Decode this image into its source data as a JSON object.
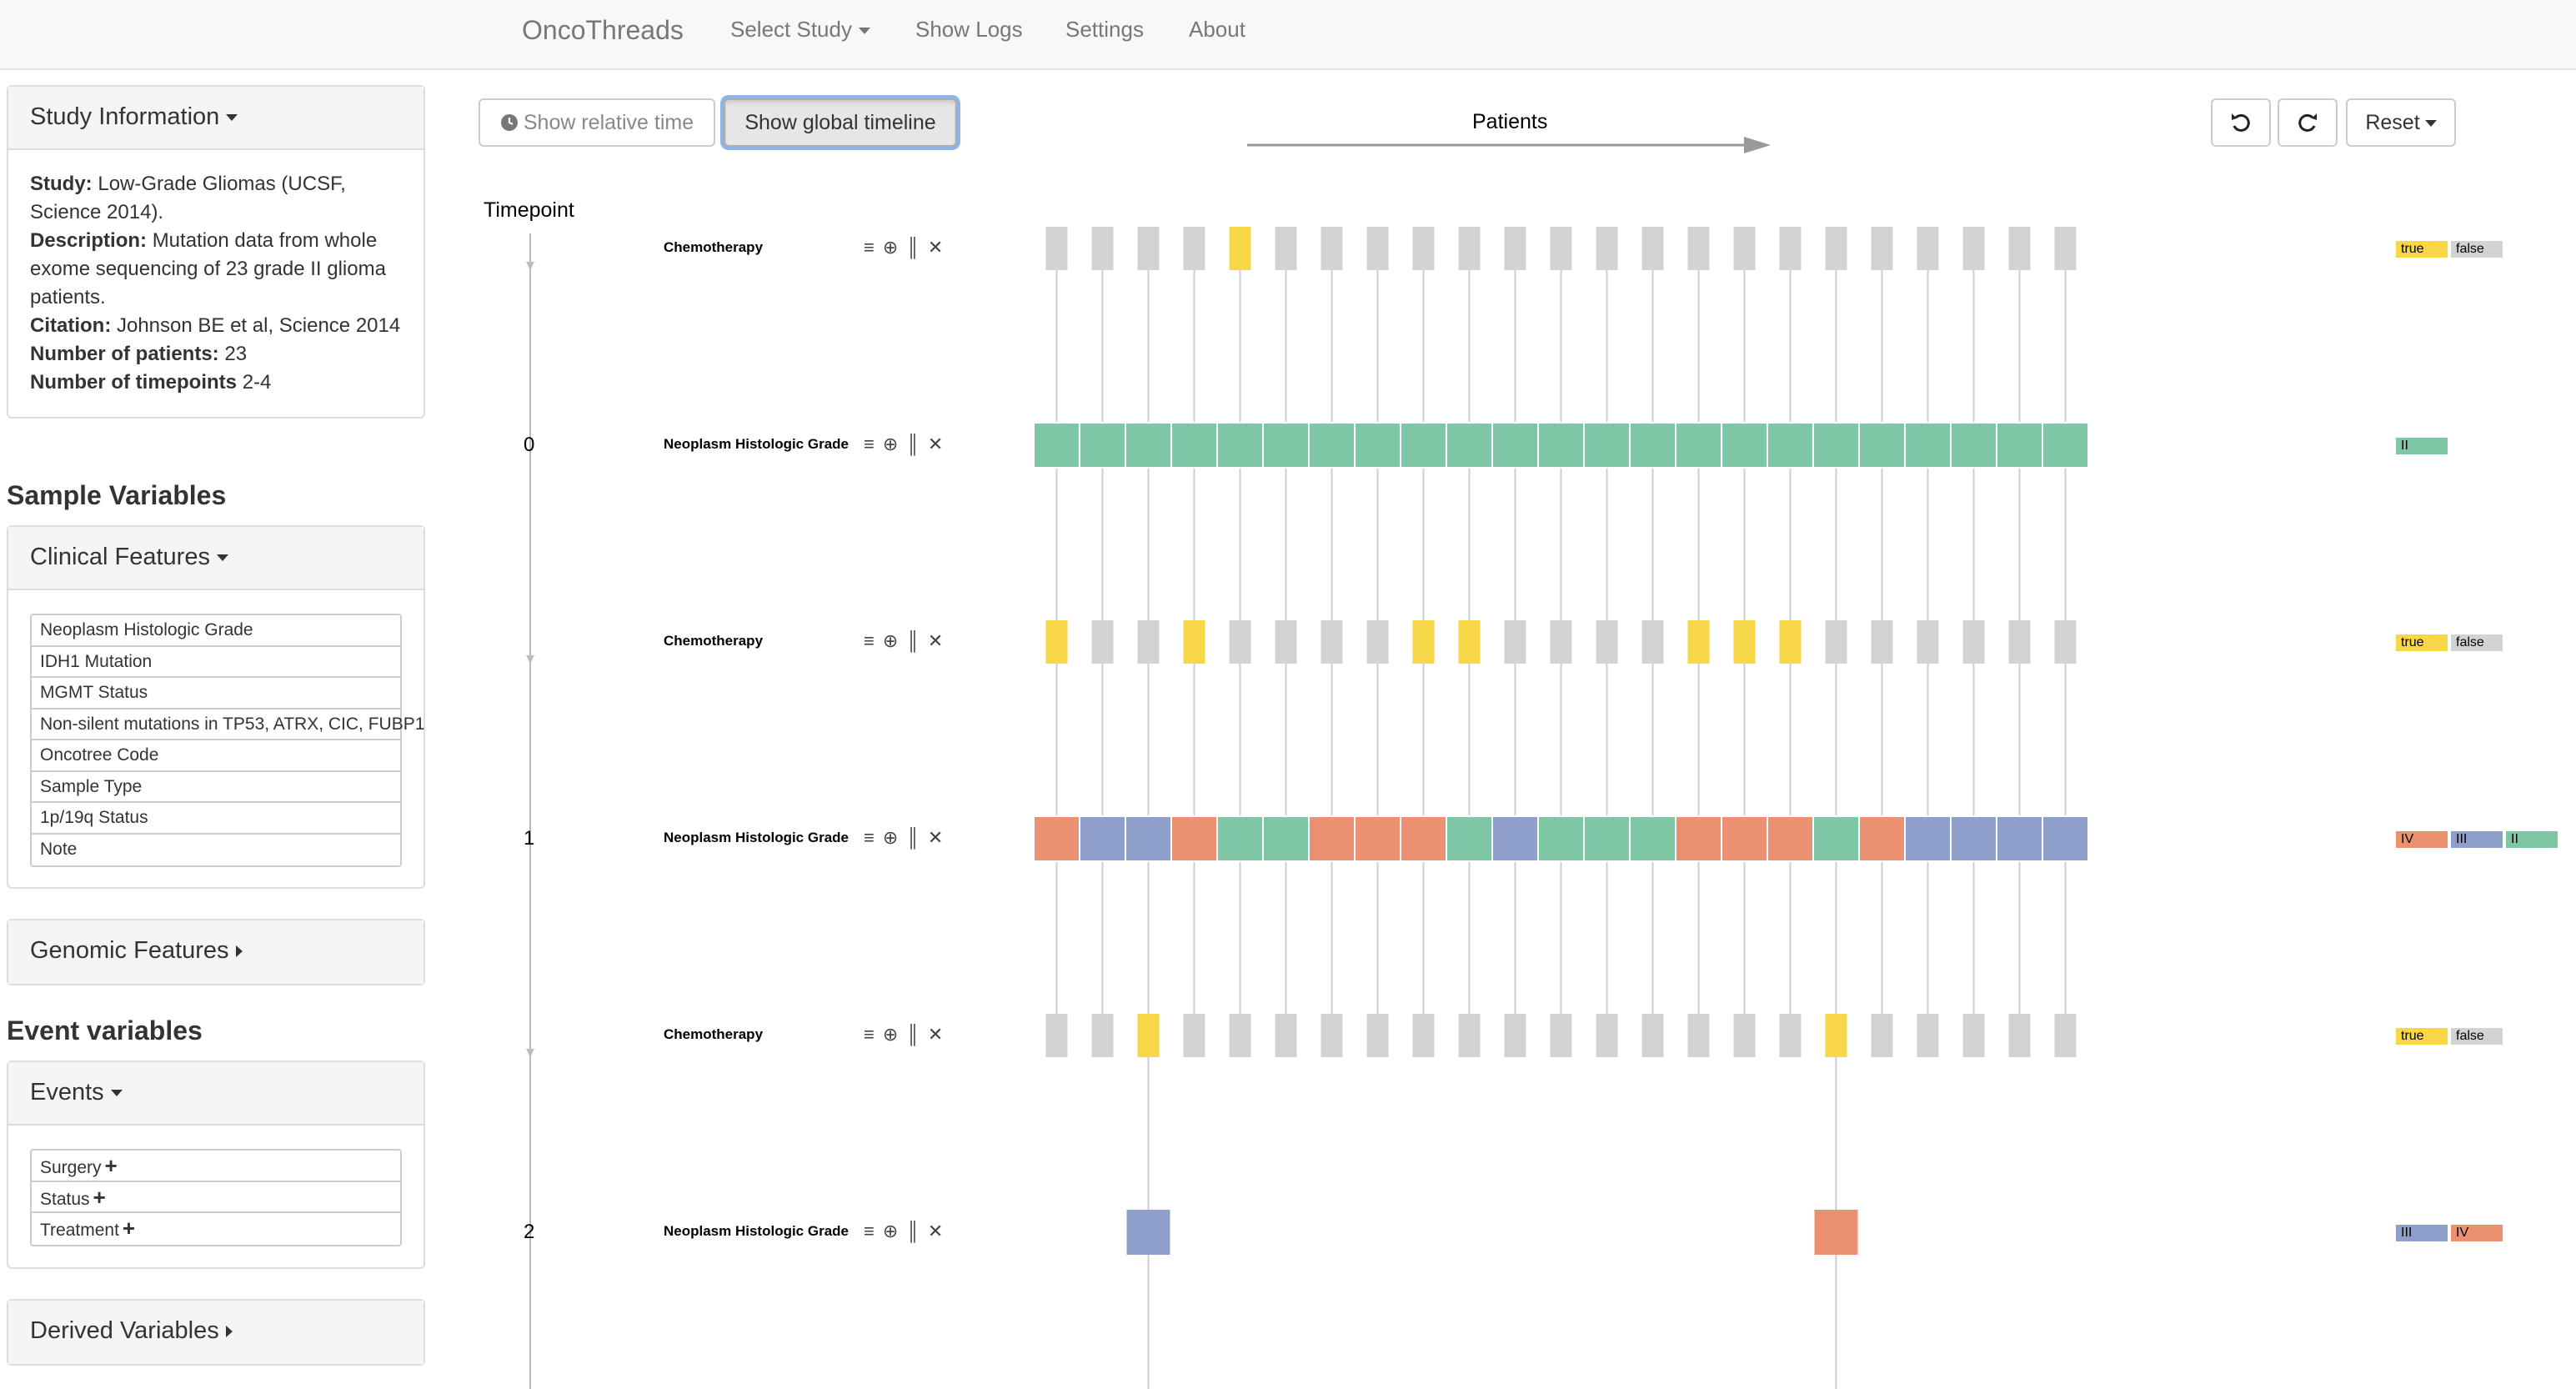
{
  "app": {
    "brand": "OncoThreads",
    "nav": [
      {
        "label": "Select Study",
        "dropdown": true
      },
      {
        "label": "Show Logs",
        "dropdown": false
      },
      {
        "label": "Settings",
        "dropdown": false
      },
      {
        "label": "About",
        "dropdown": false
      }
    ]
  },
  "sidebar": {
    "study_panel": {
      "heading": "Study Information",
      "study_label": "Study:",
      "study_value": "Low-Grade Gliomas (UCSF, Science 2014).",
      "description_label": "Description:",
      "description_value": "Mutation data from whole exome sequencing of 23 grade II glioma patients.",
      "citation_label": "Citation:",
      "citation_value": "Johnson BE et al, Science 2014",
      "patients_label": "Number of patients:",
      "patients_value": "23",
      "timepoints_label": "Number of timepoints",
      "timepoints_value": "2-4"
    },
    "sample_title": "Sample Variables",
    "clinical_panel": {
      "heading": "Clinical Features",
      "items": [
        "Neoplasm Histologic Grade",
        "IDH1 Mutation",
        "MGMT Status",
        "Non-silent mutations in TP53, ATRX, CIC, FUBP1",
        "Oncotree Code",
        "Sample Type",
        "1p/19q Status",
        "Note"
      ]
    },
    "genomic_panel": {
      "heading": "Genomic Features"
    },
    "event_title": "Event variables",
    "events_panel": {
      "heading": "Events",
      "items": [
        "Surgery",
        "Status",
        "Treatment"
      ]
    },
    "derived_panel": {
      "heading": "Derived Variables"
    }
  },
  "toolbar": {
    "relative_time": "Show relative time",
    "global_timeline": "Show global timeline",
    "reset": "Reset"
  },
  "view": {
    "patients_label": "Patients",
    "timepoint_label": "Timepoint"
  },
  "colors": {
    "true": "#f7d647",
    "false": "#d3d3d3",
    "II": "#7fc6a7",
    "III": "#8f9fcc",
    "IV": "#ec9072"
  },
  "rows": [
    {
      "type": "event",
      "label": "Chemotherapy",
      "timepoint": null,
      "values": [
        false,
        false,
        false,
        false,
        true,
        false,
        false,
        false,
        false,
        false,
        false,
        false,
        false,
        false,
        false,
        false,
        false,
        false,
        false,
        false,
        false,
        false,
        false
      ],
      "legend": [
        "true",
        "false"
      ]
    },
    {
      "type": "sample",
      "label": "Neoplasm Histologic Grade",
      "timepoint": "0",
      "values": [
        "II",
        "II",
        "II",
        "II",
        "II",
        "II",
        "II",
        "II",
        "II",
        "II",
        "II",
        "II",
        "II",
        "II",
        "II",
        "II",
        "II",
        "II",
        "II",
        "II",
        "II",
        "II",
        "II"
      ],
      "legend": [
        "II"
      ]
    },
    {
      "type": "event",
      "label": "Chemotherapy",
      "timepoint": null,
      "values": [
        true,
        false,
        false,
        true,
        false,
        false,
        false,
        false,
        true,
        true,
        false,
        false,
        false,
        false,
        true,
        true,
        true,
        false,
        false,
        false,
        false,
        false,
        false
      ],
      "legend": [
        "true",
        "false"
      ]
    },
    {
      "type": "sample",
      "label": "Neoplasm Histologic Grade",
      "timepoint": "1",
      "values": [
        "IV",
        "III",
        "III",
        "IV",
        "II",
        "II",
        "IV",
        "IV",
        "IV",
        "II",
        "III",
        "II",
        "II",
        "II",
        "IV",
        "IV",
        "IV",
        "II",
        "IV",
        "III",
        "III",
        "III",
        "III"
      ],
      "legend": [
        "IV",
        "III",
        "II"
      ]
    },
    {
      "type": "event",
      "label": "Chemotherapy",
      "timepoint": null,
      "values": [
        false,
        false,
        true,
        false,
        false,
        false,
        false,
        false,
        false,
        false,
        false,
        false,
        false,
        false,
        false,
        false,
        false,
        true,
        false,
        false,
        false,
        false,
        false
      ],
      "legend": [
        "true",
        "false"
      ]
    },
    {
      "type": "sample",
      "label": "Neoplasm Histologic Grade",
      "timepoint": "2",
      "values": [
        null,
        null,
        "III",
        null,
        null,
        null,
        null,
        null,
        null,
        null,
        null,
        null,
        null,
        null,
        null,
        null,
        null,
        "IV",
        null,
        null,
        null,
        null,
        null
      ],
      "legend": [
        "III",
        "IV"
      ]
    }
  ],
  "continuing_patients": [
    2,
    17
  ]
}
